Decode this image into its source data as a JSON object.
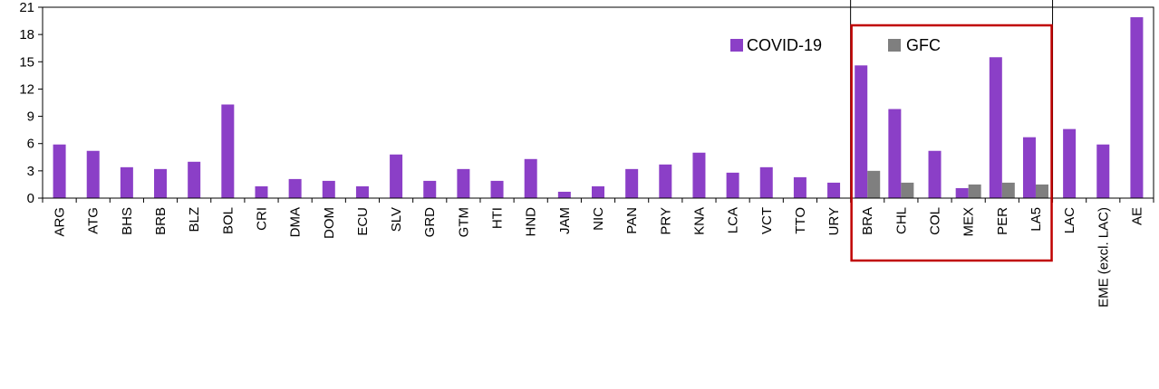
{
  "chart_data": {
    "type": "bar",
    "categories": [
      "ARG",
      "ATG",
      "BHS",
      "BRB",
      "BLZ",
      "BOL",
      "CRI",
      "DMA",
      "DOM",
      "ECU",
      "SLV",
      "GRD",
      "GTM",
      "HTI",
      "HND",
      "JAM",
      "NIC",
      "PAN",
      "PRY",
      "KNA",
      "LCA",
      "VCT",
      "TTO",
      "URY",
      "BRA",
      "CHL",
      "COL",
      "MEX",
      "PER",
      "LA5",
      "LAC",
      "EME (excl. LAC)",
      "AE"
    ],
    "series": [
      {
        "name": "COVID-19",
        "color": "#8b3fc7",
        "values": [
          5.9,
          5.2,
          3.4,
          3.2,
          4.0,
          10.3,
          1.3,
          2.1,
          1.9,
          1.3,
          4.8,
          1.9,
          3.2,
          1.9,
          4.3,
          0.7,
          1.3,
          3.2,
          3.7,
          5.0,
          2.8,
          3.4,
          2.3,
          1.7,
          14.6,
          9.8,
          5.2,
          1.1,
          15.5,
          6.7,
          7.6,
          5.9,
          19.9
        ]
      },
      {
        "name": "GFC",
        "color": "#7f7f7f",
        "values": [
          null,
          null,
          null,
          null,
          null,
          null,
          null,
          null,
          null,
          null,
          null,
          null,
          null,
          null,
          null,
          null,
          null,
          null,
          null,
          null,
          null,
          null,
          null,
          null,
          3.0,
          1.7,
          null,
          1.5,
          1.7,
          1.5,
          null,
          null,
          null
        ]
      }
    ],
    "y_ticks": [
      "0",
      "3",
      "6",
      "9",
      "12",
      "15",
      "18",
      "21"
    ],
    "ylim": [
      0,
      21
    ],
    "legend_position": "top-right",
    "highlight_box": {
      "from_category": "BRA",
      "to_category": "LA5",
      "color": "#c00000"
    },
    "separators_before": [
      "BRA",
      "LAC"
    ]
  }
}
